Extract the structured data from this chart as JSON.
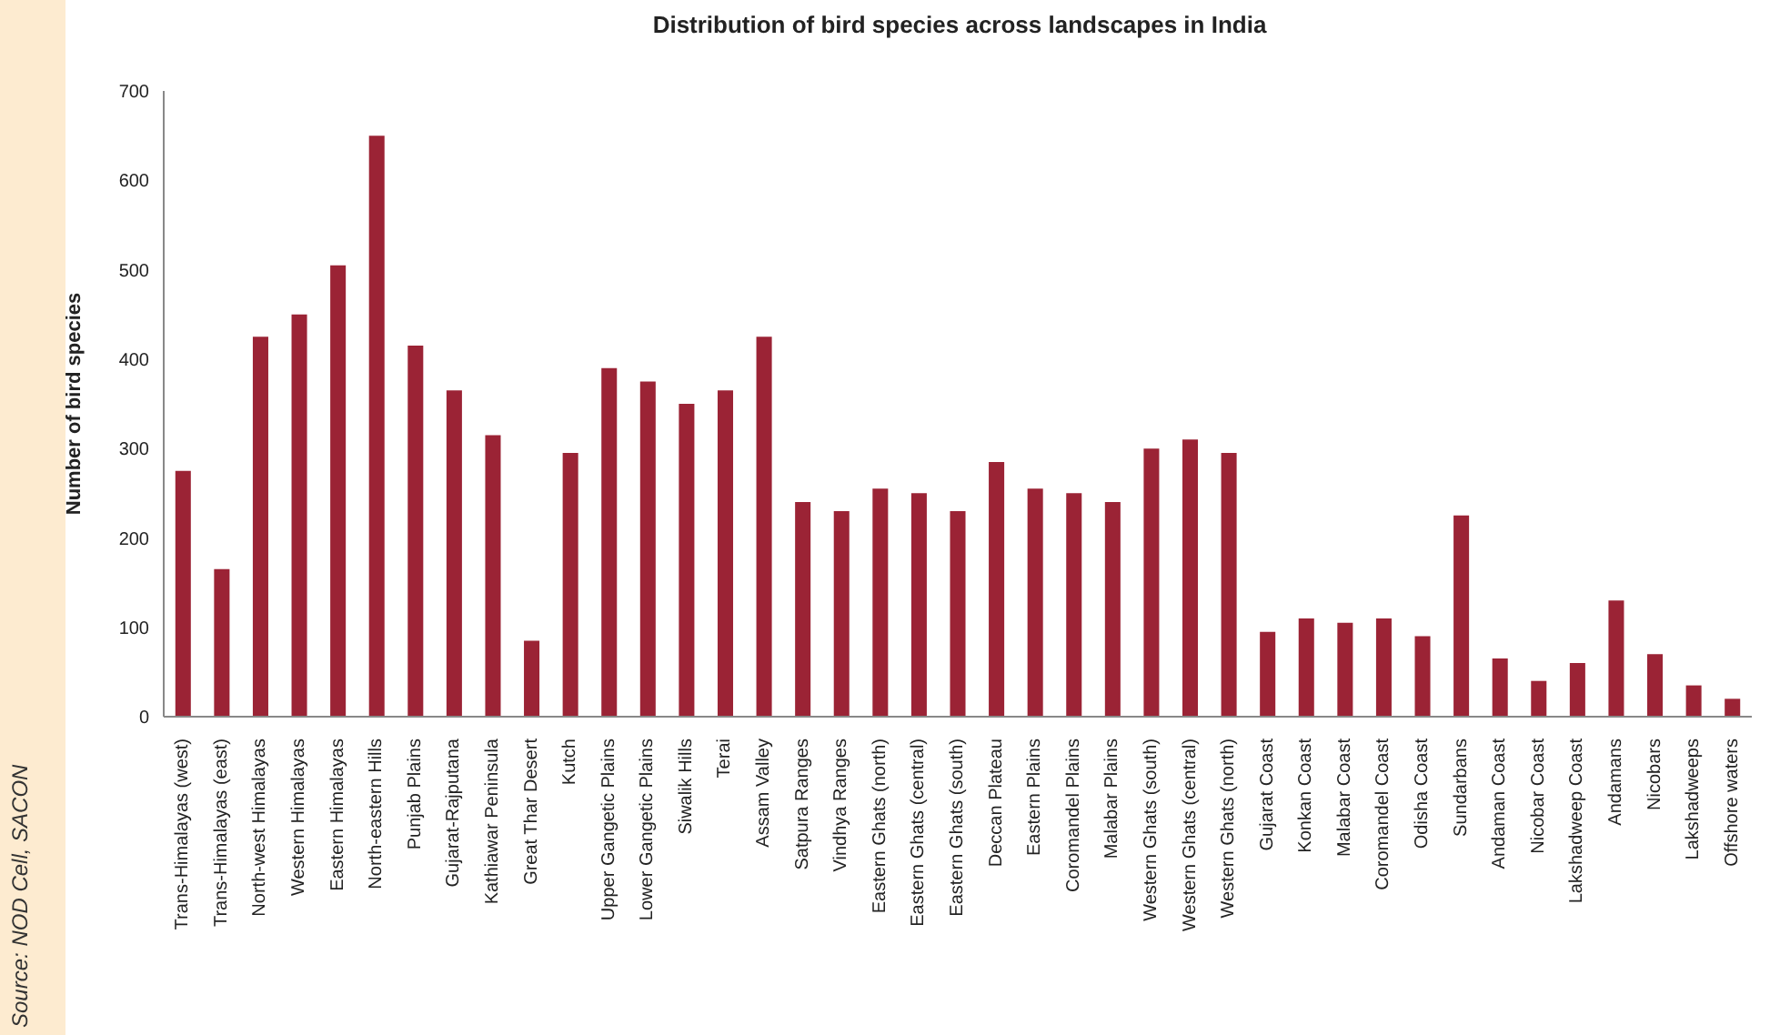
{
  "chart_data": {
    "type": "bar",
    "title": "Distribution of bird species across landscapes in India",
    "ylabel": "Number of bird species",
    "categories": [
      "Trans-Himalayas (west)",
      "Trans-Himalayas (east)",
      "North-west Himalayas",
      "Western Himalayas",
      "Eastern Himalayas",
      "North-eastern Hills",
      "Punjab Plains",
      "Gujarat-Rajputana",
      "Kathiawar Peninsula",
      "Great Thar Desert",
      "Kutch",
      "Upper Gangetic Plains",
      "Lower Gangetic Plains",
      "Siwalik Hills",
      "Terai",
      "Assam Valley",
      "Satpura Ranges",
      "Vindhya Ranges",
      "Eastern Ghats (north)",
      "Eastern Ghats (central)",
      "Eastern Ghats (south)",
      "Deccan Plateau",
      "Eastern Plains",
      "Coromandel Plains",
      "Malabar Plains",
      "Western Ghats (south)",
      "Western Ghats (central)",
      "Western Ghats (north)",
      "Gujarat Coast",
      "Konkan Coast",
      "Malabar Coast",
      "Coromandel Coast",
      "Odisha Coast",
      "Sundarbans",
      "Andaman Coast",
      "Nicobar Coast",
      "Lakshadweep Coast",
      "Andamans",
      "Nicobars",
      "Lakshadweeps",
      "Offshore waters"
    ],
    "values": [
      275,
      165,
      425,
      450,
      505,
      650,
      415,
      365,
      315,
      85,
      295,
      390,
      375,
      350,
      365,
      425,
      240,
      230,
      255,
      250,
      230,
      285,
      255,
      250,
      240,
      300,
      310,
      295,
      95,
      110,
      105,
      110,
      90,
      225,
      65,
      40,
      60,
      130,
      70,
      35,
      20
    ],
    "color": "#9b2335",
    "ylim": [
      0,
      700
    ],
    "yticks": [
      0,
      100,
      200,
      300,
      400,
      500,
      600,
      700
    ],
    "grid": false,
    "annotations": [
      "Source: NOD Cell, SACON"
    ]
  }
}
